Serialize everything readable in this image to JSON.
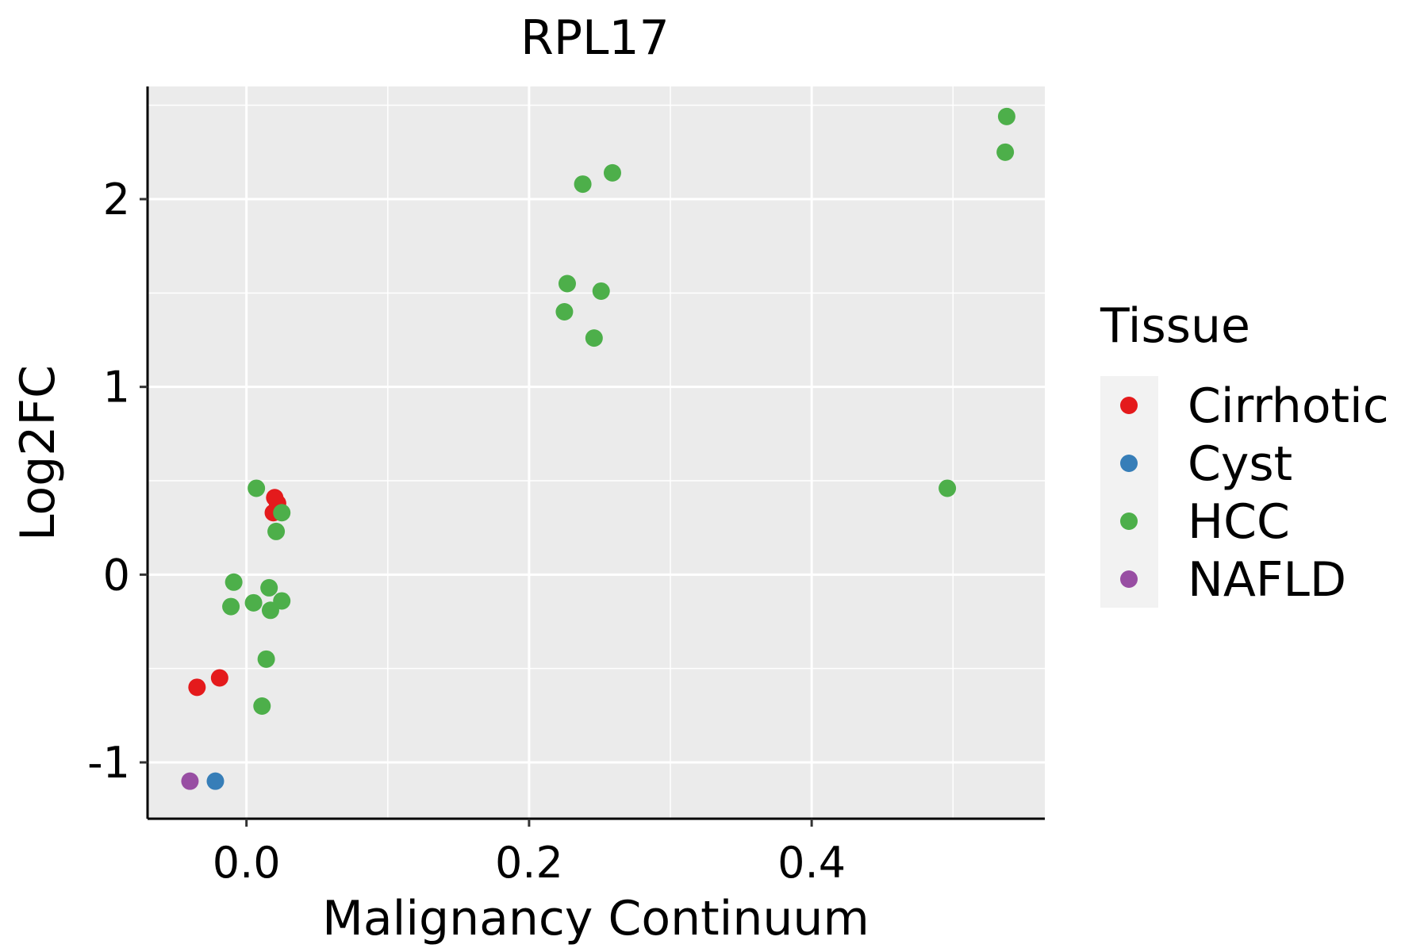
{
  "chart_data": {
    "type": "scatter",
    "title": "RPL17",
    "xlabel": "Malignancy Continuum",
    "ylabel": "Log2FC",
    "xlim": [
      -0.07,
      0.565
    ],
    "ylim": [
      -1.3,
      2.6
    ],
    "xticks": [
      0.0,
      0.2,
      0.4
    ],
    "xtick_labels": [
      "0.0",
      "0.2",
      "0.4"
    ],
    "yticks": [
      -1,
      0,
      1,
      2
    ],
    "ytick_labels": [
      "-1",
      "0",
      "1",
      "2"
    ],
    "grid": true,
    "legend": {
      "title": "Tissue",
      "position": "right"
    },
    "series": [
      {
        "name": "Cirrhotic",
        "color": "#E41A1C",
        "points": [
          {
            "x": 0.02,
            "y": 0.41
          },
          {
            "x": 0.022,
            "y": 0.38
          },
          {
            "x": 0.019,
            "y": 0.33
          },
          {
            "x": -0.035,
            "y": -0.6
          },
          {
            "x": -0.019,
            "y": -0.55
          }
        ]
      },
      {
        "name": "Cyst",
        "color": "#377EB8",
        "points": [
          {
            "x": -0.022,
            "y": -1.1
          }
        ]
      },
      {
        "name": "HCC",
        "color": "#4DAF4A",
        "points": [
          {
            "x": 0.538,
            "y": 2.44
          },
          {
            "x": 0.537,
            "y": 2.25
          },
          {
            "x": 0.259,
            "y": 2.14
          },
          {
            "x": 0.238,
            "y": 2.08
          },
          {
            "x": 0.227,
            "y": 1.55
          },
          {
            "x": 0.251,
            "y": 1.51
          },
          {
            "x": 0.225,
            "y": 1.4
          },
          {
            "x": 0.246,
            "y": 1.26
          },
          {
            "x": 0.496,
            "y": 0.46
          },
          {
            "x": 0.007,
            "y": 0.46
          },
          {
            "x": 0.025,
            "y": 0.33
          },
          {
            "x": 0.021,
            "y": 0.23
          },
          {
            "x": -0.009,
            "y": -0.04
          },
          {
            "x": 0.016,
            "y": -0.07
          },
          {
            "x": 0.025,
            "y": -0.14
          },
          {
            "x": 0.005,
            "y": -0.15
          },
          {
            "x": -0.011,
            "y": -0.17
          },
          {
            "x": 0.017,
            "y": -0.19
          },
          {
            "x": 0.014,
            "y": -0.45
          },
          {
            "x": 0.011,
            "y": -0.7
          }
        ]
      },
      {
        "name": "NAFLD",
        "color": "#984EA3",
        "points": [
          {
            "x": -0.04,
            "y": -1.1
          }
        ]
      }
    ]
  }
}
